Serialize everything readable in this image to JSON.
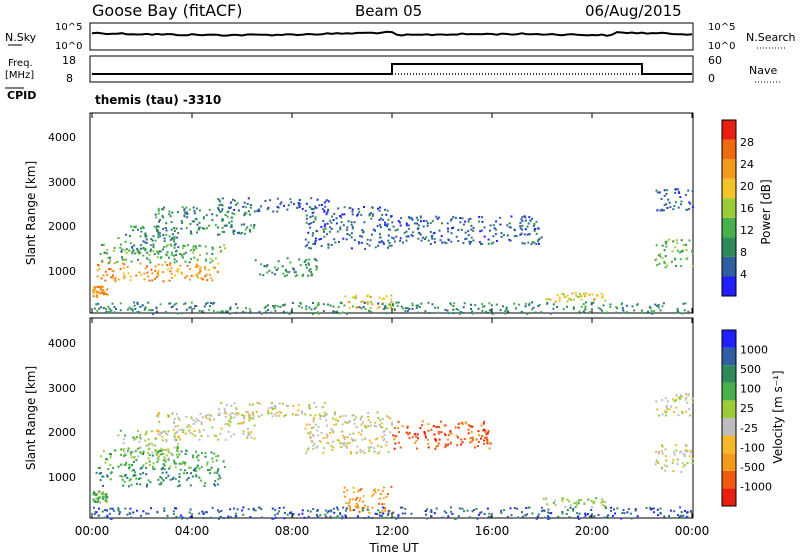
{
  "header": {
    "station": "Goose Bay (fitACF)",
    "beam": "Beam 05",
    "date": "06/Aug/2015"
  },
  "top_panel": {
    "left_label": "N.Sky",
    "left_ticks": [
      "10^5",
      "10^0"
    ],
    "right_ticks": [
      "10^5",
      "10^0"
    ],
    "right_label": "N.Search"
  },
  "freq_panel": {
    "left_label": "Freq.",
    "left_units": "[MHz]",
    "left_ticks": [
      "18",
      "8"
    ],
    "right_ticks": [
      "60",
      "0"
    ],
    "right_label": "Nave",
    "cpid_label": "CPID",
    "cpid_text": "themis (tau) -3310"
  },
  "colors": {
    "power": [
      "#1f1fff",
      "#2f5fa0",
      "#2f8a5a",
      "#46b04a",
      "#9ccc3a",
      "#f2c428",
      "#f39a1c",
      "#f06a10",
      "#e81e0e"
    ],
    "velocity": [
      "#e81e0e",
      "#f05a10",
      "#f39a1c",
      "#f6b82a",
      "#bdbdbd",
      "#9ccc3a",
      "#46b04a",
      "#2f8a5a",
      "#2f5fa0",
      "#1f1fff"
    ]
  },
  "chart_data": [
    {
      "type": "heatmap",
      "name": "power",
      "ylabel": "Slant Range [km]",
      "yticks": [
        "1000",
        "2000",
        "3000",
        "4000"
      ],
      "ylim": [
        200,
        4500
      ],
      "xlim_hours": [
        0,
        24
      ],
      "colorbar_label": "Power [dB]",
      "colorbar_ticks": [
        "4",
        "8",
        "12",
        "16",
        "20",
        "24",
        "28"
      ],
      "scatter_regions": [
        {
          "t": [
            0.0,
            0.6
          ],
          "r": [
            550,
            800
          ],
          "level": 6
        },
        {
          "t": [
            0.1,
            5.2
          ],
          "r": [
            900,
            1300
          ],
          "level": 6
        },
        {
          "t": [
            0.3,
            5.3
          ],
          "r": [
            1300,
            1700
          ],
          "level": 3
        },
        {
          "t": [
            1.0,
            3.5
          ],
          "r": [
            1500,
            2100
          ],
          "level": 2
        },
        {
          "t": [
            2.5,
            6.5
          ],
          "r": [
            1900,
            2500
          ],
          "level": 2
        },
        {
          "t": [
            5.0,
            9.5
          ],
          "r": [
            2400,
            2700
          ],
          "level": 1
        },
        {
          "t": [
            8.5,
            12.0
          ],
          "r": [
            1600,
            2500
          ],
          "level": 1
        },
        {
          "t": [
            10.0,
            12.0
          ],
          "r": [
            300,
            600
          ],
          "level": 5
        },
        {
          "t": [
            6.5,
            9.0
          ],
          "r": [
            1000,
            1400
          ],
          "level": 2
        },
        {
          "t": [
            12.0,
            18.0
          ],
          "r": [
            1700,
            2300
          ],
          "level": 1
        },
        {
          "t": [
            18.0,
            20.5
          ],
          "r": [
            450,
            650
          ],
          "level": 5
        },
        {
          "t": [
            22.5,
            24.0
          ],
          "r": [
            1200,
            1800
          ],
          "level": 3
        },
        {
          "t": [
            22.5,
            24.0
          ],
          "r": [
            2400,
            2900
          ],
          "level": 1
        },
        {
          "t": [
            0.0,
            24.0
          ],
          "r": [
            200,
            450
          ],
          "level": 2
        }
      ]
    },
    {
      "type": "heatmap",
      "name": "velocity",
      "ylabel": "Slant Range [km]",
      "yticks": [
        "1000",
        "2000",
        "3000",
        "4000"
      ],
      "ylim": [
        200,
        4500
      ],
      "xlim_hours": [
        0,
        24
      ],
      "xticks": [
        "00:00",
        "04:00",
        "08:00",
        "12:00",
        "16:00",
        "20:00",
        "00:00"
      ],
      "xlabel": "Time UT",
      "colorbar_label": "Velocity [m s⁻¹]",
      "colorbar_ticks": [
        "-1000",
        "-500",
        "-100",
        "-25",
        "25",
        "100",
        "500",
        "1000"
      ],
      "scatter_regions": [
        {
          "t": [
            0.0,
            0.6
          ],
          "r": [
            550,
            800
          ],
          "level": 6
        },
        {
          "t": [
            0.1,
            5.2
          ],
          "r": [
            900,
            1300
          ],
          "level": 7
        },
        {
          "t": [
            0.3,
            5.3
          ],
          "r": [
            1300,
            1700
          ],
          "level": 6
        },
        {
          "t": [
            1.0,
            3.5
          ],
          "r": [
            1500,
            2100
          ],
          "level": 5
        },
        {
          "t": [
            2.5,
            6.5
          ],
          "r": [
            1900,
            2500
          ],
          "level": 4
        },
        {
          "t": [
            5.0,
            9.5
          ],
          "r": [
            2400,
            2700
          ],
          "level": 4
        },
        {
          "t": [
            8.5,
            12.0
          ],
          "r": [
            1600,
            2500
          ],
          "level": 4
        },
        {
          "t": [
            10.0,
            12.0
          ],
          "r": [
            300,
            900
          ],
          "level": 2
        },
        {
          "t": [
            12.0,
            16.0
          ],
          "r": [
            1700,
            2300
          ],
          "level": 1
        },
        {
          "t": [
            18.0,
            20.5
          ],
          "r": [
            450,
            650
          ],
          "level": 5
        },
        {
          "t": [
            22.5,
            24.0
          ],
          "r": [
            1200,
            1800
          ],
          "level": 4
        },
        {
          "t": [
            22.5,
            24.0
          ],
          "r": [
            2400,
            2900
          ],
          "level": 4
        },
        {
          "t": [
            0.0,
            24.0
          ],
          "r": [
            200,
            450
          ],
          "level": 8
        }
      ]
    }
  ]
}
